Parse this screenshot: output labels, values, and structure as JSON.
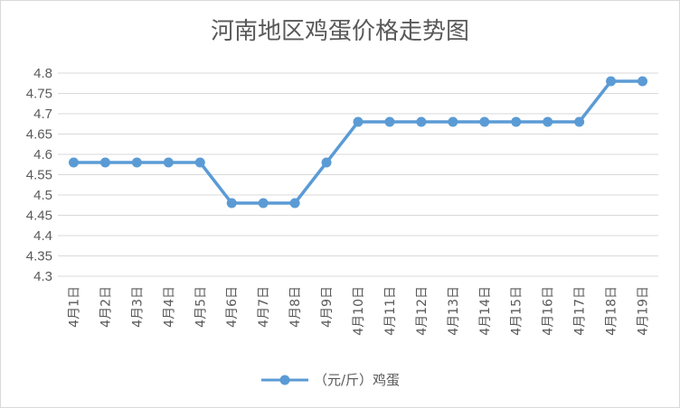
{
  "chart_data": {
    "type": "line",
    "title": "河南地区鸡蛋价格走势图",
    "categories": [
      "4月1日",
      "4月2日",
      "4月3日",
      "4月4日",
      "4月5日",
      "4月6日",
      "4月7日",
      "4月8日",
      "4月9日",
      "4月10日",
      "4月11日",
      "4月12日",
      "4月13日",
      "4月14日",
      "4月15日",
      "4月16日",
      "4月17日",
      "4月18日",
      "4月19日"
    ],
    "series": [
      {
        "name": "（元/斤）鸡蛋",
        "values": [
          4.58,
          4.58,
          4.58,
          4.58,
          4.58,
          4.48,
          4.48,
          4.48,
          4.58,
          4.68,
          4.68,
          4.68,
          4.68,
          4.68,
          4.68,
          4.68,
          4.68,
          4.78,
          4.78
        ]
      }
    ],
    "yticks": [
      "4.3",
      "4.35",
      "4.4",
      "4.45",
      "4.5",
      "4.55",
      "4.6",
      "4.65",
      "4.7",
      "4.75",
      "4.8"
    ],
    "ylim": [
      4.3,
      4.8
    ],
    "xlabel": "",
    "ylabel": "",
    "grid": true,
    "legend_position": "bottom",
    "line_color": "#5b9bd5",
    "grid_color": "#d9d9d9"
  }
}
